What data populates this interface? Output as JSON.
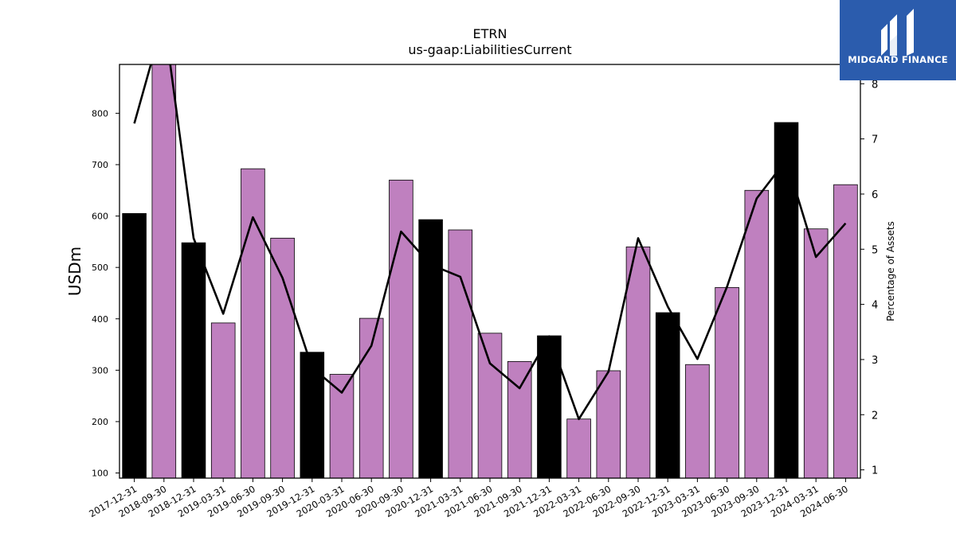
{
  "chart_data": {
    "type": "bar",
    "title": "ETRN",
    "subtitle": "us-gaap:LiabilitiesCurrent",
    "ylabel": "USDm",
    "y2label": "Percentage of Assets",
    "ylim": [
      90,
      895
    ],
    "y2lim": [
      0.85,
      8.35
    ],
    "yticks": [
      100,
      200,
      300,
      400,
      500,
      600,
      700,
      800
    ],
    "y2ticks": [
      1,
      2,
      3,
      4,
      5,
      6,
      7,
      8
    ],
    "categories": [
      "2017-12-31",
      "2018-09-30",
      "2018-12-31",
      "2019-03-31",
      "2019-06-30",
      "2019-09-30",
      "2019-12-31",
      "2020-03-31",
      "2020-06-30",
      "2020-09-30",
      "2020-12-31",
      "2021-03-31",
      "2021-06-30",
      "2021-09-30",
      "2021-12-31",
      "2022-03-31",
      "2022-06-30",
      "2022-09-30",
      "2022-12-31",
      "2023-03-31",
      "2023-06-30",
      "2023-09-30",
      "2023-12-31",
      "2024-03-31",
      "2024-06-30"
    ],
    "series": [
      {
        "type": "bar",
        "values": [
          605,
          895,
          548,
          392,
          692,
          557,
          335,
          292,
          401,
          670,
          593,
          573,
          372,
          317,
          367,
          205,
          299,
          540,
          412,
          311,
          461,
          650,
          782,
          575,
          661
        ]
      },
      {
        "type": "line",
        "axis": "right",
        "values": [
          7.28,
          9.2,
          5.2,
          3.83,
          5.58,
          4.48,
          2.85,
          2.4,
          3.25,
          5.32,
          4.72,
          4.5,
          2.93,
          2.48,
          3.42,
          1.92,
          2.78,
          5.2,
          3.96,
          3.01,
          4.32,
          5.92,
          6.62,
          4.86,
          5.47
        ]
      }
    ],
    "highlight_color": "#000000",
    "bar_color": "#bf80bf",
    "line_color": "#000000",
    "highlight_categories_suffix": "12-31"
  },
  "logo": {
    "text": "MIDGARD FINANCE"
  }
}
